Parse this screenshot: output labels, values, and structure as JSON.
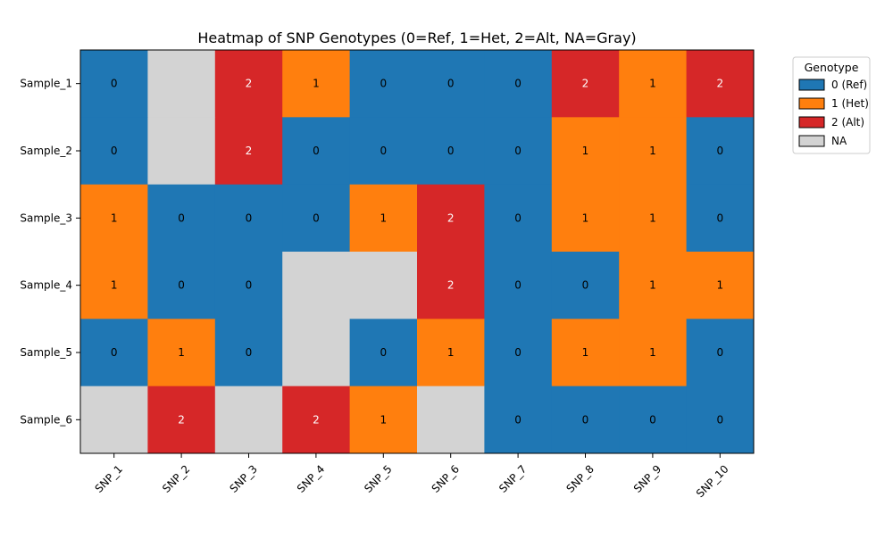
{
  "chart_data": {
    "type": "heatmap",
    "title": "Heatmap of SNP Genotypes (0=Ref, 1=Het, 2=Alt, NA=Gray)",
    "x_categories": [
      "SNP_1",
      "SNP_2",
      "SNP_3",
      "SNP_4",
      "SNP_5",
      "SNP_6",
      "SNP_7",
      "SNP_8",
      "SNP_9",
      "SNP_10"
    ],
    "y_categories": [
      "Sample_1",
      "Sample_2",
      "Sample_3",
      "Sample_4",
      "Sample_5",
      "Sample_6"
    ],
    "values": [
      [
        0,
        null,
        2,
        1,
        0,
        0,
        0,
        2,
        1,
        2
      ],
      [
        0,
        null,
        2,
        0,
        0,
        0,
        0,
        1,
        1,
        0
      ],
      [
        1,
        0,
        0,
        0,
        1,
        2,
        0,
        1,
        1,
        0
      ],
      [
        1,
        0,
        0,
        null,
        null,
        2,
        0,
        0,
        1,
        1
      ],
      [
        0,
        1,
        0,
        null,
        0,
        1,
        0,
        1,
        1,
        0
      ],
      [
        null,
        2,
        null,
        2,
        1,
        null,
        0,
        0,
        0,
        0
      ]
    ],
    "colors": {
      "0": "#1f77b4",
      "1": "#ff7f0e",
      "2": "#d62728",
      "NA": "#d3d3d3"
    },
    "legend": {
      "title": "Genotype",
      "placement": "outside-upper-right",
      "entries": [
        {
          "key": "0",
          "label": "0 (Ref)"
        },
        {
          "key": "1",
          "label": "1 (Het)"
        },
        {
          "key": "2",
          "label": "2 (Alt)"
        },
        {
          "key": "NA",
          "label": "NA"
        }
      ]
    },
    "grid": false
  }
}
